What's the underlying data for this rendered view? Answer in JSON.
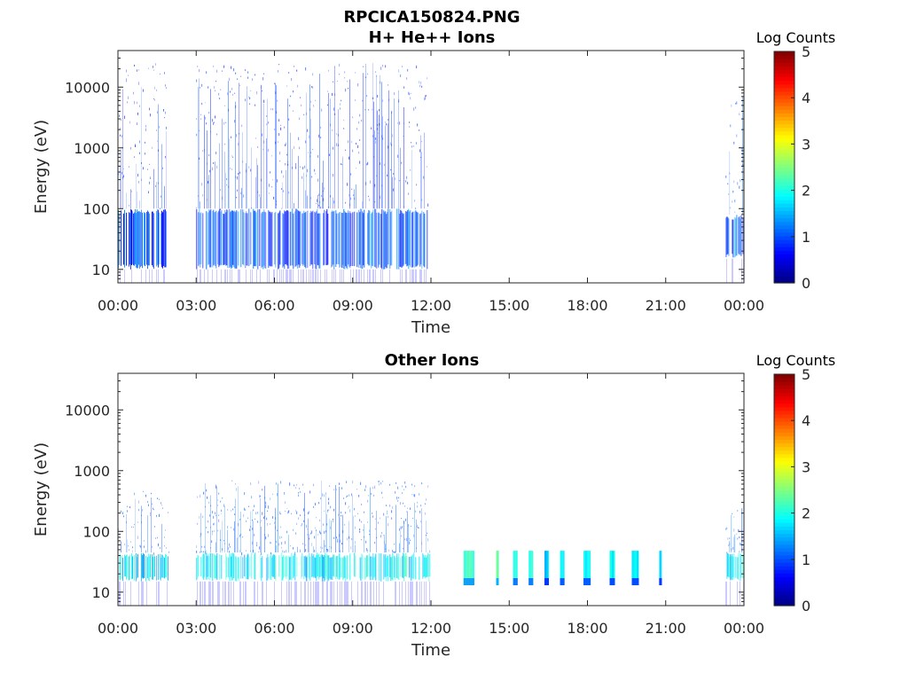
{
  "figure": {
    "title_line1": "RPCICA150824.PNG",
    "title_line2": "H+ He++ Ions"
  },
  "chart_data": [
    {
      "type": "heatmap",
      "title": "H+ He++ Ions",
      "xlabel": "Time",
      "ylabel": "Energy (eV)",
      "x_ticks": [
        "00:00",
        "03:00",
        "06:00",
        "09:00",
        "12:00",
        "15:00",
        "18:00",
        "21:00",
        "00:00"
      ],
      "x_range_hours": [
        0,
        24
      ],
      "y_scale": "log",
      "y_range_ev": [
        6,
        40000
      ],
      "y_ticks": [
        10,
        100,
        1000,
        10000
      ],
      "y_tick_labels": [
        "10",
        "100",
        "1000",
        "10000"
      ],
      "colorbar": {
        "label": "Log Counts",
        "range": [
          0,
          5
        ],
        "ticks": [
          "0",
          "1",
          "2",
          "3",
          "4",
          "5"
        ],
        "colormap": "jet"
      },
      "activity_intervals": [
        {
          "start_h": 0.0,
          "end_h": 1.85,
          "band_ev": [
            10,
            100
          ],
          "band_level": 1.0,
          "speckle_top_ev": 25000,
          "speckle_density": 0.55,
          "speckle_level": 0.7
        },
        {
          "start_h": 3.0,
          "end_h": 11.9,
          "band_ev": [
            10,
            100
          ],
          "band_level": 1.0,
          "speckle_top_ev": 25000,
          "speckle_density": 0.6,
          "speckle_level": 0.7
        },
        {
          "start_h": 23.3,
          "end_h": 24.0,
          "band_ev": [
            15,
            80
          ],
          "band_level": 1.1,
          "speckle_top_ev": 8000,
          "speckle_density": 0.35,
          "speckle_level": 0.8
        }
      ]
    },
    {
      "type": "heatmap",
      "title": "Other Ions",
      "xlabel": "Time",
      "ylabel": "Energy (eV)",
      "x_ticks": [
        "00:00",
        "03:00",
        "06:00",
        "09:00",
        "12:00",
        "15:00",
        "18:00",
        "21:00",
        "00:00"
      ],
      "x_range_hours": [
        0,
        24
      ],
      "y_scale": "log",
      "y_range_ev": [
        6,
        40000
      ],
      "y_ticks": [
        10,
        100,
        1000,
        10000
      ],
      "y_tick_labels": [
        "10",
        "100",
        "1000",
        "10000"
      ],
      "colorbar": {
        "label": "Log Counts",
        "range": [
          0,
          5
        ],
        "ticks": [
          "0",
          "1",
          "2",
          "3",
          "4",
          "5"
        ],
        "colormap": "jet"
      },
      "activity_intervals": [
        {
          "start_h": 0.0,
          "end_h": 1.95,
          "band_ev": [
            15,
            45
          ],
          "band_level": 1.7,
          "speckle_top_ev": 500,
          "speckle_density": 0.45,
          "speckle_level": 0.9
        },
        {
          "start_h": 3.0,
          "end_h": 11.95,
          "band_ev": [
            15,
            45
          ],
          "band_level": 1.8,
          "speckle_top_ev": 700,
          "speckle_density": 0.55,
          "speckle_level": 0.9
        },
        {
          "start_h": 13.25,
          "end_h": 13.65,
          "band_ev": [
            13,
            48
          ],
          "band_level": 2.1,
          "speckle_top_ev": 48,
          "speckle_density": 0,
          "speckle_level": 0
        },
        {
          "start_h": 14.5,
          "end_h": 14.6,
          "band_ev": [
            13,
            48
          ],
          "band_level": 2.3,
          "speckle_top_ev": 48,
          "speckle_density": 0,
          "speckle_level": 0
        },
        {
          "start_h": 15.15,
          "end_h": 15.3,
          "band_ev": [
            13,
            48
          ],
          "band_level": 1.9,
          "speckle_top_ev": 48,
          "speckle_density": 0,
          "speckle_level": 0
        },
        {
          "start_h": 15.75,
          "end_h": 15.9,
          "band_ev": [
            13,
            48
          ],
          "band_level": 1.9,
          "speckle_top_ev": 48,
          "speckle_density": 0,
          "speckle_level": 0
        },
        {
          "start_h": 16.35,
          "end_h": 16.5,
          "band_ev": [
            13,
            48
          ],
          "band_level": 1.7,
          "speckle_top_ev": 48,
          "speckle_density": 0,
          "speckle_level": 0
        },
        {
          "start_h": 16.95,
          "end_h": 17.1,
          "band_ev": [
            13,
            48
          ],
          "band_level": 1.8,
          "speckle_top_ev": 48,
          "speckle_density": 0,
          "speckle_level": 0
        },
        {
          "start_h": 17.85,
          "end_h": 18.1,
          "band_ev": [
            13,
            48
          ],
          "band_level": 1.8,
          "speckle_top_ev": 48,
          "speckle_density": 0,
          "speckle_level": 0
        },
        {
          "start_h": 18.85,
          "end_h": 19.05,
          "band_ev": [
            13,
            48
          ],
          "band_level": 1.8,
          "speckle_top_ev": 48,
          "speckle_density": 0,
          "speckle_level": 0
        },
        {
          "start_h": 19.7,
          "end_h": 19.95,
          "band_ev": [
            13,
            48
          ],
          "band_level": 1.8,
          "speckle_top_ev": 48,
          "speckle_density": 0,
          "speckle_level": 0
        },
        {
          "start_h": 20.75,
          "end_h": 20.85,
          "band_ev": [
            13,
            48
          ],
          "band_level": 1.6,
          "speckle_top_ev": 48,
          "speckle_density": 0,
          "speckle_level": 0
        },
        {
          "start_h": 23.3,
          "end_h": 24.0,
          "band_ev": [
            15,
            45
          ],
          "band_level": 1.8,
          "speckle_top_ev": 250,
          "speckle_density": 0.4,
          "speckle_level": 0.9
        }
      ]
    }
  ]
}
